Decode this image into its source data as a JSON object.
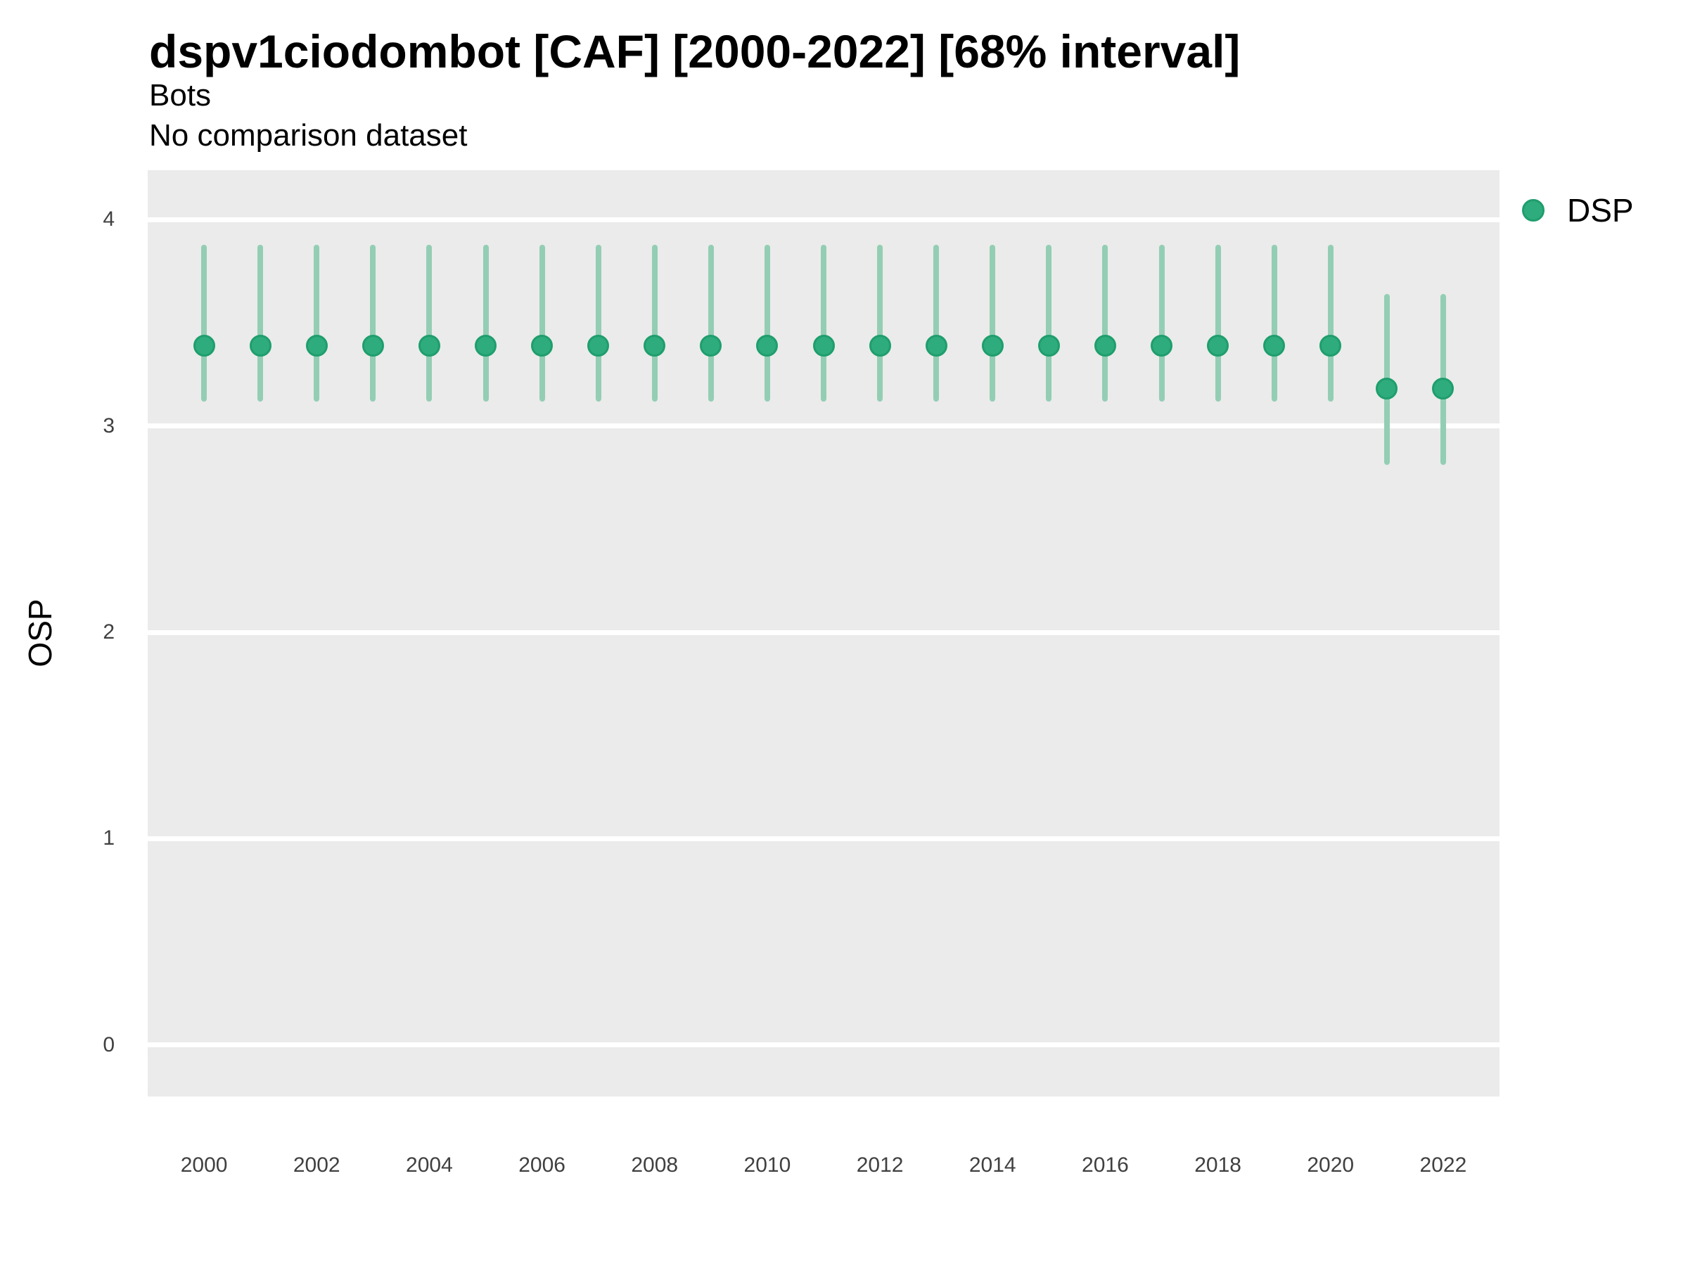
{
  "header": {
    "title": "dspv1ciodombot [CAF] [2000-2022] [68% interval]",
    "subtitle": "Bots",
    "note": "No comparison dataset"
  },
  "y_axis": {
    "title": "OSP"
  },
  "legend": {
    "label": "DSP"
  },
  "colors": {
    "page_bg": "#FFFFFF",
    "panel_bg": "#EBEBEB",
    "gridline": "#FFFFFF",
    "point_fill": "#2EAC7D",
    "point_stroke": "#1F9E6D",
    "interval_bar": "#93CEB4",
    "tick_text": "#404040",
    "text": "#000000"
  },
  "chart_data": {
    "type": "scatter",
    "subtype": "pointrange-interval",
    "title": "dspv1ciodombot [CAF] [2000-2022] [68% interval]",
    "subtitle": "Bots",
    "note": "No comparison dataset",
    "interval_level": "68%",
    "xlabel": "",
    "ylabel": "OSP",
    "xlim": [
      1999,
      2023
    ],
    "ylim": [
      -0.25,
      4.24
    ],
    "x_ticks": [
      2000,
      2002,
      2004,
      2006,
      2008,
      2010,
      2012,
      2014,
      2016,
      2018,
      2020,
      2022
    ],
    "y_ticks": [
      0,
      1,
      2,
      3,
      4
    ],
    "grid": "major-horizontal-only",
    "legend_position": "right",
    "series": [
      {
        "name": "DSP",
        "color": "#2EAC7D",
        "interval_color": "#93CEB4",
        "points": [
          {
            "x": 2000,
            "y": 3.39,
            "lower": 3.12,
            "upper": 3.88
          },
          {
            "x": 2001,
            "y": 3.39,
            "lower": 3.12,
            "upper": 3.88
          },
          {
            "x": 2002,
            "y": 3.39,
            "lower": 3.12,
            "upper": 3.88
          },
          {
            "x": 2003,
            "y": 3.39,
            "lower": 3.12,
            "upper": 3.88
          },
          {
            "x": 2004,
            "y": 3.39,
            "lower": 3.12,
            "upper": 3.88
          },
          {
            "x": 2005,
            "y": 3.39,
            "lower": 3.12,
            "upper": 3.88
          },
          {
            "x": 2006,
            "y": 3.39,
            "lower": 3.12,
            "upper": 3.88
          },
          {
            "x": 2007,
            "y": 3.39,
            "lower": 3.12,
            "upper": 3.88
          },
          {
            "x": 2008,
            "y": 3.39,
            "lower": 3.12,
            "upper": 3.88
          },
          {
            "x": 2009,
            "y": 3.39,
            "lower": 3.12,
            "upper": 3.88
          },
          {
            "x": 2010,
            "y": 3.39,
            "lower": 3.12,
            "upper": 3.88
          },
          {
            "x": 2011,
            "y": 3.39,
            "lower": 3.12,
            "upper": 3.88
          },
          {
            "x": 2012,
            "y": 3.39,
            "lower": 3.12,
            "upper": 3.88
          },
          {
            "x": 2013,
            "y": 3.39,
            "lower": 3.12,
            "upper": 3.88
          },
          {
            "x": 2014,
            "y": 3.39,
            "lower": 3.12,
            "upper": 3.88
          },
          {
            "x": 2015,
            "y": 3.39,
            "lower": 3.12,
            "upper": 3.88
          },
          {
            "x": 2016,
            "y": 3.39,
            "lower": 3.12,
            "upper": 3.88
          },
          {
            "x": 2017,
            "y": 3.39,
            "lower": 3.12,
            "upper": 3.88
          },
          {
            "x": 2018,
            "y": 3.39,
            "lower": 3.12,
            "upper": 3.88
          },
          {
            "x": 2019,
            "y": 3.39,
            "lower": 3.12,
            "upper": 3.88
          },
          {
            "x": 2020,
            "y": 3.39,
            "lower": 3.12,
            "upper": 3.88
          },
          {
            "x": 2021,
            "y": 3.18,
            "lower": 2.81,
            "upper": 3.64
          },
          {
            "x": 2022,
            "y": 3.18,
            "lower": 2.81,
            "upper": 3.64
          }
        ]
      }
    ]
  }
}
